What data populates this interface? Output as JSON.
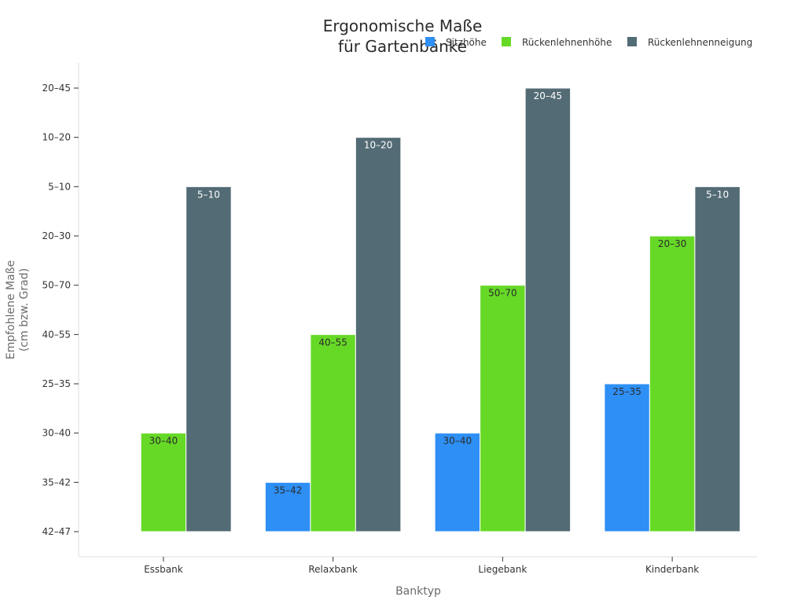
{
  "chart_data": {
    "type": "bar",
    "title_lines": [
      "Ergonomische Maße",
      "für Gartenbänke"
    ],
    "xlabel": "Banktyp",
    "ylabel_lines": [
      "Empfohlene Maße",
      "(cm bzw. Grad)"
    ],
    "y_categories": [
      "42–47",
      "35–42",
      "30–40",
      "25–35",
      "40–55",
      "50–70",
      "20–30",
      "5–10",
      "10–20",
      "20–45"
    ],
    "categories": [
      "Essbank",
      "Relaxbank",
      "Liegebank",
      "Kinderbank"
    ],
    "legend_position": "top-right",
    "series": [
      {
        "name": "Sitzhöhe",
        "color": "#2e8ff5",
        "label_color": "#2b2b2b",
        "values": [
          null,
          "35–42",
          "30–40",
          "25–35"
        ]
      },
      {
        "name": "Rückenlehnenhöhe",
        "color": "#66d926",
        "label_color": "#2b2b2b",
        "values": [
          "30–40",
          "40–55",
          "50–70",
          "20–30"
        ]
      },
      {
        "name": "Rückenlehnenneigung",
        "color": "#536b75",
        "label_color": "#ffffff",
        "values": [
          "5–10",
          "10–20",
          "20–45",
          "5–10"
        ]
      }
    ]
  }
}
